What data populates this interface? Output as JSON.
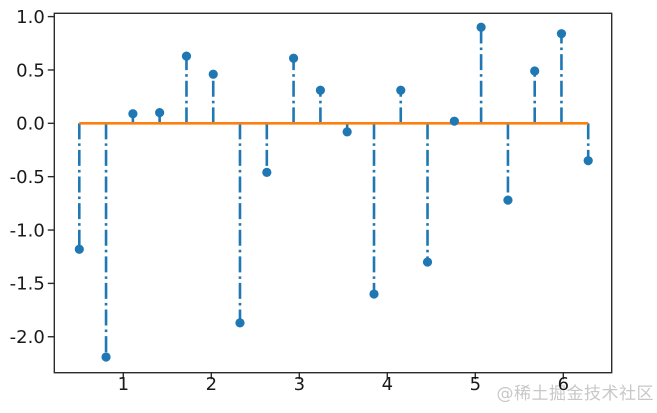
{
  "figure": {
    "background": "#ffffff"
  },
  "watermark": {
    "text": "@稀土掘金技术社区",
    "color": "#c8c8c8"
  },
  "chart_data": {
    "type": "stem",
    "title": "",
    "xlabel": "",
    "ylabel": "",
    "x": [
      0.5,
      0.804,
      1.109,
      1.413,
      1.718,
      2.022,
      2.326,
      2.631,
      2.935,
      3.24,
      3.544,
      3.849,
      4.153,
      4.457,
      4.762,
      5.066,
      5.371,
      5.675,
      5.979,
      6.283
    ],
    "y": [
      -1.18,
      -2.19,
      0.09,
      0.1,
      0.63,
      0.46,
      -1.87,
      -0.46,
      0.61,
      0.31,
      -0.08,
      -1.6,
      0.31,
      -1.3,
      0.02,
      0.9,
      -0.72,
      0.49,
      0.84,
      -0.35
    ],
    "baseline_y": 0,
    "baseline_span": [
      0.5,
      6.283
    ],
    "line_style": "dash-dot",
    "marker": "circle",
    "grid": false,
    "legend": null,
    "xlim": [
      0.216,
      6.55
    ],
    "ylim": [
      -2.337,
      1.031
    ],
    "xticks": [
      1,
      2,
      3,
      4,
      5,
      6
    ],
    "xtick_labels": [
      "1",
      "2",
      "3",
      "4",
      "5",
      "6"
    ],
    "yticks": [
      1.0,
      0.5,
      0.0,
      -0.5,
      -1.0,
      -1.5,
      -2.0
    ],
    "ytick_labels": [
      "1.0",
      "0.5",
      "0.0",
      "-0.5",
      "-1.0",
      "-1.5",
      "-2.0"
    ],
    "colors": {
      "stem": "#1f77b4",
      "marker": "#1f77b4",
      "baseline": "#ff7f0e",
      "axis": "#2b2b2b",
      "tick_label": "#1a1a1a"
    }
  }
}
